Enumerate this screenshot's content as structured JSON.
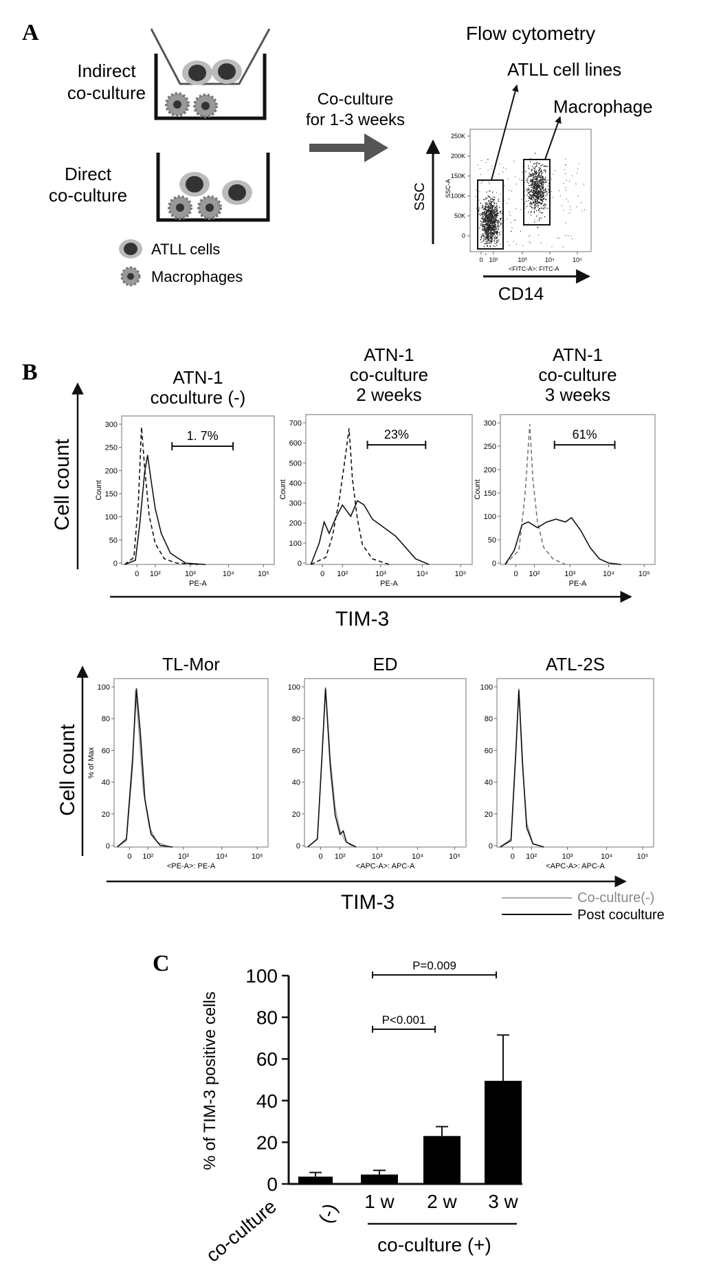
{
  "panel_a": {
    "letter": "A",
    "indirect_label": [
      "Indirect",
      "co-culture"
    ],
    "direct_label": [
      "Direct",
      "co-culture"
    ],
    "legend_atll": "ATLL cells",
    "legend_macro": "Macrophages",
    "arrow_label": [
      "Co-culture",
      "for 1-3 weeks"
    ],
    "flow_title": "Flow cytometry",
    "gate_atll": "ATLL cell lines",
    "gate_macro": "Macrophage",
    "y_label": "SSC",
    "x_label": "CD14",
    "dot_y_axis_title": "SSC-A",
    "dot_x_axis_title": "<FITC-A>: FITC-A",
    "dot_y_ticks": [
      "250K",
      "200K",
      "150K",
      "100K",
      "50K",
      "0"
    ],
    "dot_x_ticks": [
      "0",
      "10²",
      "10³",
      "10⁴",
      "10⁵"
    ]
  },
  "panel_b": {
    "letter": "B",
    "row1_y_label": "Cell count",
    "row1_x_label": "TIM-3",
    "row2_y_label": "Cell count",
    "row2_x_label": "TIM-3",
    "legend_pre": "Co-culture(-)",
    "legend_post": "Post coculture",
    "row1": [
      {
        "title": [
          "ATN-1",
          "coculture (-)"
        ],
        "gate": "1. 7%",
        "y_axis_title": "Count",
        "x_axis_title": "PE-A",
        "y_ticks": [
          "300",
          "250",
          "200",
          "150",
          "100",
          "50",
          "0"
        ],
        "x_ticks": [
          "0",
          "10²",
          "10³",
          "10⁴",
          "10⁵"
        ]
      },
      {
        "title": [
          "ATN-1",
          "co-culture",
          "2 weeks"
        ],
        "gate": "23%",
        "y_axis_title": "Count",
        "x_axis_title": "PE-A",
        "y_ticks": [
          "700",
          "600",
          "500",
          "400",
          "300",
          "200",
          "100",
          "0"
        ],
        "x_ticks": [
          "0",
          "10²",
          "10³",
          "10⁴",
          "10⁵"
        ]
      },
      {
        "title": [
          "ATN-1",
          "co-culture",
          "3 weeks"
        ],
        "gate": "61%",
        "y_axis_title": "Count",
        "x_axis_title": "PE-A",
        "y_ticks": [
          "300",
          "250",
          "200",
          "150",
          "100",
          "50",
          "0"
        ],
        "x_ticks": [
          "0",
          "10²",
          "10³",
          "10⁴",
          "10⁵"
        ]
      }
    ],
    "row2": [
      {
        "title": "TL-Mor",
        "y_axis_title": "% of Max",
        "x_axis_title": "<PE-A>: PE-A",
        "y_ticks": [
          "100",
          "80",
          "60",
          "40",
          "20",
          "0"
        ],
        "x_ticks": [
          "0",
          "10²",
          "10³",
          "10⁴",
          "10⁵"
        ]
      },
      {
        "title": "ED",
        "y_axis_title": "",
        "x_axis_title": "<APC-A>: APC-A",
        "y_ticks": [
          "100",
          "80",
          "60",
          "40",
          "20",
          "0"
        ],
        "x_ticks": [
          "0",
          "10²",
          "10³",
          "10⁴",
          "10⁵"
        ]
      },
      {
        "title": "ATL-2S",
        "y_axis_title": "",
        "x_axis_title": "<APC-A>: APC-A",
        "y_ticks": [
          "100",
          "80",
          "60",
          "40",
          "20",
          "0"
        ],
        "x_ticks": [
          "0",
          "10²",
          "10³",
          "10⁴",
          "10⁵"
        ]
      }
    ]
  },
  "panel_c": {
    "letter": "C",
    "y_label": "% of TIM-3 positive cells",
    "group_label": "co-culture (+)",
    "sig": [
      {
        "label": "P<0.001",
        "from": "1 w",
        "to": "2 w"
      },
      {
        "label": "P=0.009",
        "from": "1 w",
        "to": "3 w"
      }
    ]
  },
  "chart_data": {
    "type": "bar",
    "categories": [
      "co-culture (-)",
      "1 w",
      "2 w",
      "3 w"
    ],
    "category_lines": [
      [
        "co-culture",
        "(-)"
      ],
      [
        "1 w"
      ],
      [
        "2 w"
      ],
      [
        "3 w"
      ]
    ],
    "values": [
      3.5,
      4.5,
      23,
      49.5
    ],
    "errors": [
      2,
      2,
      4.5,
      22
    ],
    "ylim": [
      0,
      100
    ],
    "yticks": [
      0,
      20,
      40,
      60,
      80,
      100
    ],
    "xlabel": "",
    "ylabel": "% of TIM-3 positive cells",
    "colors": {
      "bar": "#000000"
    }
  }
}
